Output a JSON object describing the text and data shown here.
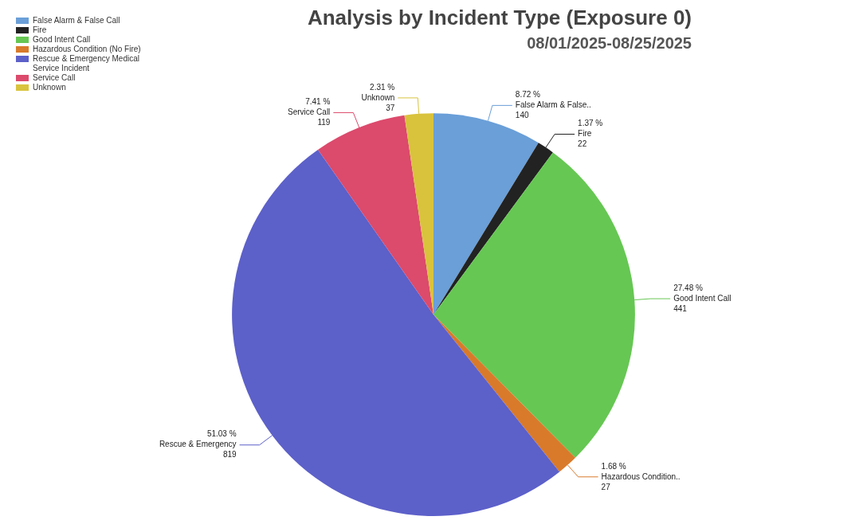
{
  "chart_data": {
    "type": "pie",
    "title": "Analysis by Incident Type (Exposure 0)",
    "subtitle": "08/01/2025-08/25/2025",
    "categories": [
      "False Alarm & False Call",
      "Fire",
      "Good Intent Call",
      "Hazardous Condition (No Fire)",
      "Rescue & Emergency Medical Service Incident",
      "Service Call",
      "Unknown"
    ],
    "values": [
      140,
      22,
      441,
      27,
      819,
      119,
      37
    ],
    "colors": [
      "#6a9fd8",
      "#222222",
      "#66c753",
      "#d97a2b",
      "#5c60c9",
      "#dc4a6c",
      "#d9c33d"
    ],
    "value_labels": [
      "8.72 %\nFalse Alarm & False..\n140",
      "1.37 %\nFire\n22",
      "27.48 %\nGood Intent Call\n441",
      "1.68 %\nHazardous Condition..\n27",
      "51.03 %\nRescue & Emergency\n819",
      "7.41 %\nService Call\n119",
      "2.31 %\nUnknown\n37"
    ],
    "legend": "top left"
  }
}
